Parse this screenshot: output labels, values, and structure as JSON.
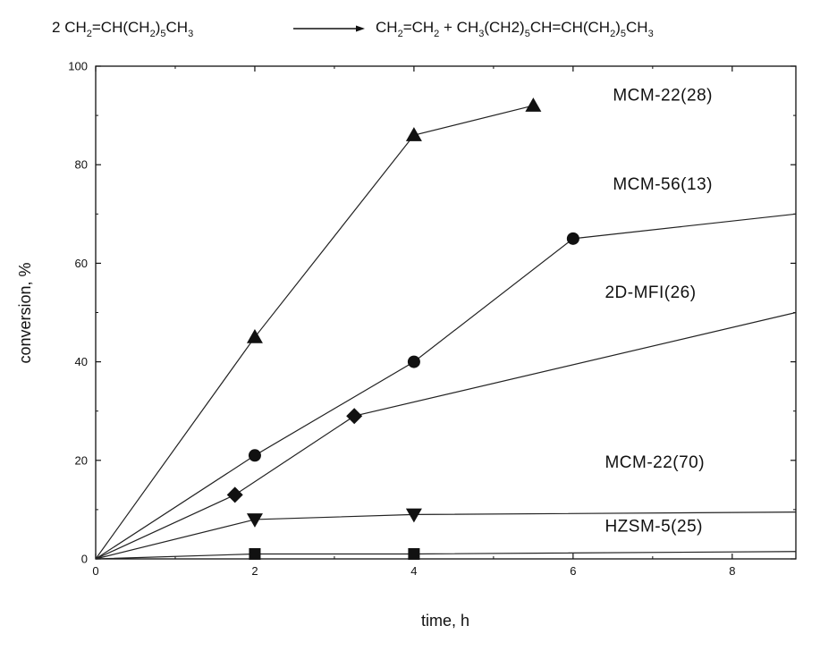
{
  "equation": {
    "lhs": {
      "coef": "2 ",
      "p1": "CH",
      "s1": "2",
      "p2": "=CH(CH",
      "s2": "2",
      "p3": ")",
      "s3": "5",
      "p4": "CH",
      "s4": "3"
    },
    "rhs": {
      "p1": "CH",
      "s1": "2",
      "p2": "=CH",
      "s2": "2",
      "p3": " + CH",
      "s3": "3",
      "p4": "(CH2)",
      "s4": "5",
      "p5": "CH=CH(CH",
      "s5": "2",
      "p6": ")",
      "s6": "5",
      "p7": "CH",
      "s7": "3"
    }
  },
  "chart_data": {
    "type": "line",
    "xlabel": "time, h",
    "ylabel": "conversion, %",
    "xlim": [
      0,
      8.8
    ],
    "ylim": [
      0,
      100
    ],
    "xticks": [
      0,
      2,
      4,
      6,
      8
    ],
    "yticks": [
      0,
      20,
      40,
      60,
      80,
      100
    ],
    "grid": false,
    "legend": "labels placed next to curves",
    "series": [
      {
        "name": "MCM-22(28)",
        "marker": "triangle-up",
        "x": [
          0,
          2,
          4,
          5.5
        ],
        "y": [
          0,
          45,
          86,
          92
        ]
      },
      {
        "name": "MCM-56(13)",
        "marker": "circle",
        "x": [
          0,
          2,
          4,
          6,
          8.8
        ],
        "y": [
          0,
          21,
          40,
          65,
          70
        ],
        "marker_points": 4
      },
      {
        "name": "2D-MFI(26)",
        "marker": "diamond",
        "x": [
          0,
          1.75,
          3.25,
          8.8
        ],
        "y": [
          0,
          13,
          29,
          50
        ],
        "marker_points": 3
      },
      {
        "name": "MCM-22(70)",
        "marker": "triangle-down",
        "x": [
          0,
          2,
          4,
          8.8
        ],
        "y": [
          0,
          8,
          9,
          9.5
        ],
        "marker_points": 3
      },
      {
        "name": "HZSM-5(25)",
        "marker": "square",
        "x": [
          0,
          2,
          4,
          8.8
        ],
        "y": [
          0,
          1,
          1,
          1.5
        ],
        "marker_points": 3
      }
    ],
    "label_anchor": [
      {
        "x": 6.5,
        "y": 93
      },
      {
        "x": 6.5,
        "y": 75
      },
      {
        "x": 6.4,
        "y": 53
      },
      {
        "x": 6.4,
        "y": 18.5
      },
      {
        "x": 6.4,
        "y": 5.5
      }
    ]
  }
}
